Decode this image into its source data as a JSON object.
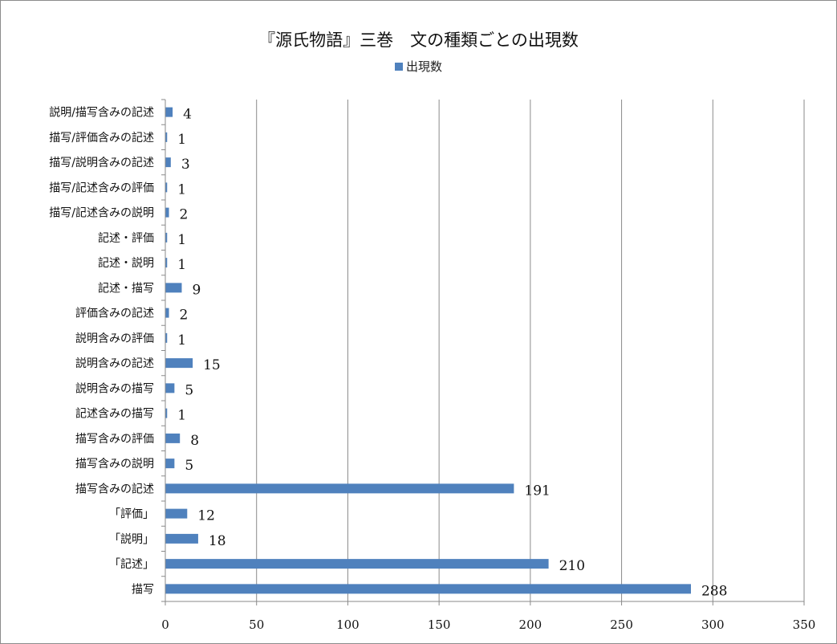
{
  "chart_data": {
    "type": "bar",
    "orientation": "horizontal",
    "title": "『源氏物語』三巻　文の種類ごとの出現数",
    "legend": {
      "position": "top",
      "entries": [
        "出現数"
      ]
    },
    "series": [
      {
        "name": "出現数",
        "color": "#4f81bd",
        "values": [
          4,
          1,
          3,
          1,
          2,
          1,
          1,
          9,
          2,
          1,
          15,
          5,
          1,
          8,
          5,
          191,
          12,
          18,
          210,
          288
        ]
      }
    ],
    "categories": [
      "説明/描写含みの記述",
      "描写/評価含みの記述",
      "描写/説明含みの記述",
      "描写/記述含みの評価",
      "描写/記述含みの説明",
      "記述・評価",
      "記述・説明",
      "記述・描写",
      "評価含みの記述",
      "説明含みの評価",
      "説明含みの記述",
      "説明含みの描写",
      "記述含みの描写",
      "描写含みの評価",
      "描写含みの説明",
      "描写含みの記述",
      "「評価」",
      "「説明」",
      "「記述」",
      "描写"
    ],
    "xlim": [
      0,
      350
    ],
    "xticks": [
      0,
      50,
      100,
      150,
      200,
      250,
      300,
      350
    ],
    "grid": {
      "vertical": true,
      "horizontal": false
    },
    "data_labels": true
  }
}
